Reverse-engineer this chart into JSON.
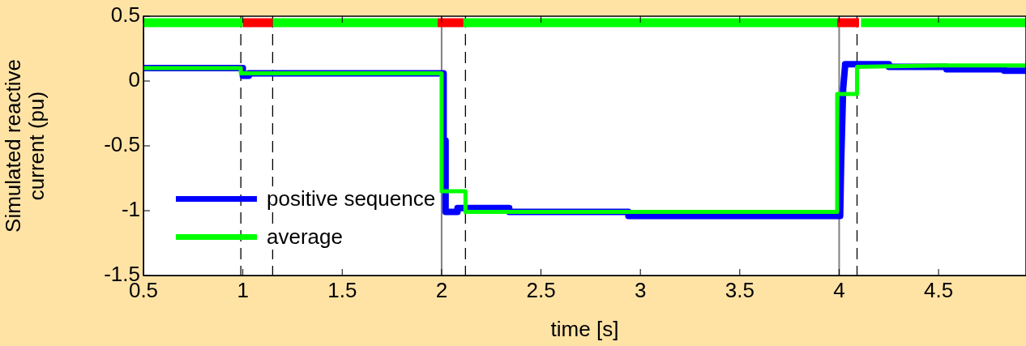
{
  "chart_data": {
    "type": "line",
    "xlabel": "time [s]",
    "ylabel": "Simulated reactive current (pu)",
    "xlim": [
      0.5,
      4.94
    ],
    "xticks": [
      0.5,
      1,
      1.5,
      2,
      2.5,
      3,
      3.5,
      4,
      4.5
    ],
    "ylim": [
      -1.5,
      0.5
    ],
    "yticks": [
      -1.5,
      -1,
      -0.5,
      0,
      0.5
    ],
    "grid": false,
    "legend": "bottom left",
    "marker": "none",
    "line_style": "solid",
    "ref_lines": [
      {
        "axis": "x",
        "value": 0.99,
        "color": "#000000",
        "line_style": "dashed"
      },
      {
        "axis": "x",
        "value": 1.15,
        "color": "#000000",
        "line_style": "dashed"
      },
      {
        "axis": "x",
        "value": 2.0,
        "color": "#808080",
        "line_style": "solid"
      },
      {
        "axis": "x",
        "value": 2.12,
        "color": "#000000",
        "line_style": "dashed"
      },
      {
        "axis": "x",
        "value": 4.0,
        "color": "#808080",
        "line_style": "solid"
      },
      {
        "axis": "x",
        "value": 4.09,
        "color": "#000000",
        "line_style": "dashed"
      }
    ],
    "series": [
      {
        "color": "#00ff00",
        "x": [
          0.5,
          1.0,
          1.05,
          1.15,
          1.98,
          2.05,
          2.11,
          3.99,
          4.05,
          4.11,
          4.94
        ],
        "values": [
          0.45,
          0.45,
          null,
          0.45,
          0.45,
          null,
          0.45,
          0.45,
          null,
          0.45,
          0.45
        ]
      },
      {
        "color": "#ff0000",
        "x": [
          1.0,
          1.15,
          1.5,
          1.98,
          2.11,
          3.0,
          3.99,
          4.1
        ],
        "values": [
          0.45,
          0.45,
          null,
          0.45,
          0.45,
          null,
          0.45,
          0.45
        ]
      },
      {
        "name": "positive sequence",
        "color": "#0000ff",
        "x": [
          0.5,
          1.0,
          1.0,
          1.03,
          1.03,
          2.01,
          2.01,
          2.02,
          2.02,
          2.08,
          2.08,
          2.34,
          2.34,
          2.94,
          2.94,
          4.005,
          4.01,
          4.01,
          4.02,
          4.02,
          4.03,
          4.03,
          4.25,
          4.25,
          4.54,
          4.54,
          4.83,
          4.83,
          4.94
        ],
        "values": [
          0.1,
          0.1,
          0.04,
          0.04,
          0.06,
          0.06,
          -0.46,
          -0.46,
          -1.01,
          -1.01,
          -0.98,
          -0.98,
          -1.01,
          -1.01,
          -1.04,
          -1.04,
          -0.63,
          -0.63,
          -0.06,
          -0.06,
          0.12,
          0.13,
          0.13,
          0.11,
          0.11,
          0.09,
          0.09,
          0.08,
          0.08
        ]
      },
      {
        "name": "average",
        "color": "#00ff00",
        "x": [
          0.5,
          0.99,
          0.99,
          2.0,
          2.0,
          2.12,
          2.12,
          3.99,
          3.99,
          4.09,
          4.09,
          4.5,
          4.94
        ],
        "values": [
          0.1,
          0.1,
          0.06,
          0.06,
          -0.85,
          -0.85,
          -1.01,
          -1.01,
          -0.1,
          -0.1,
          0.11,
          0.12,
          0.12
        ]
      }
    ]
  }
}
